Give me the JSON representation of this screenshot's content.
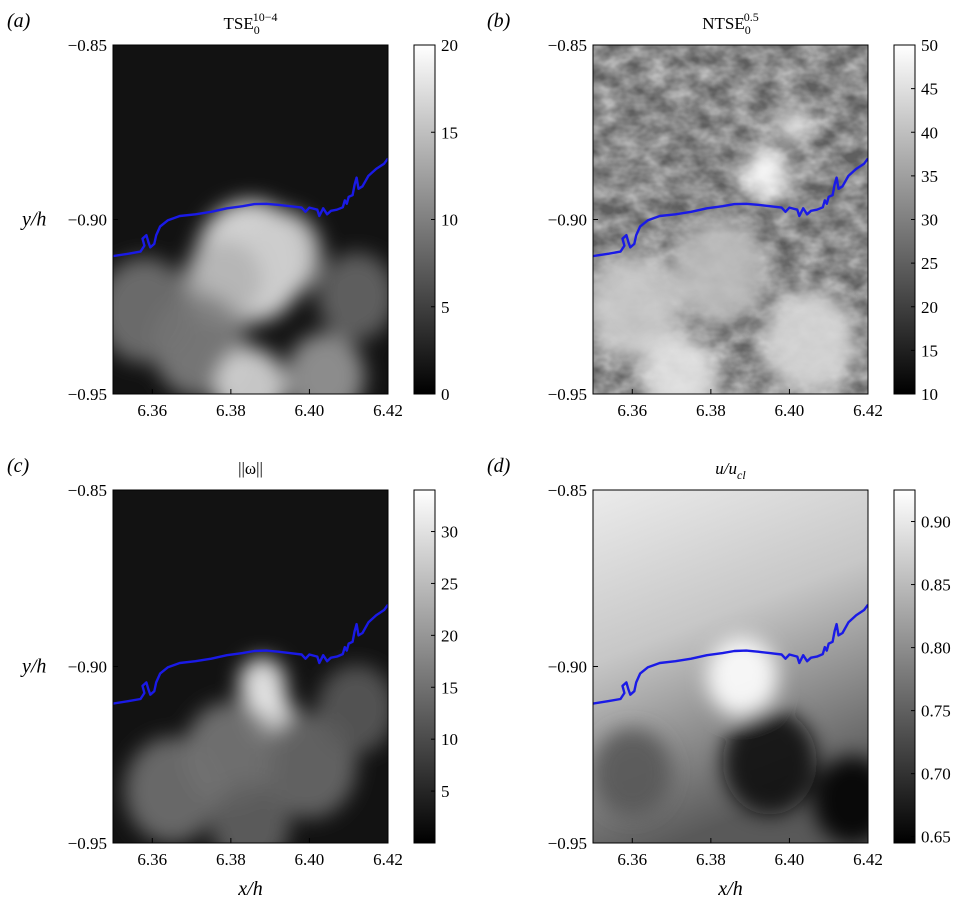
{
  "chart_data": [
    {
      "type": "heatmap",
      "panel_label": "(a)",
      "title": "TSE",
      "title_sub": "0",
      "title_sup": "10−4",
      "colormap": "gray",
      "xlim": [
        6.35,
        6.42
      ],
      "ylim": [
        -0.95,
        -0.85
      ],
      "x_ticks": [
        "6.36",
        "6.38",
        "6.40",
        "6.42"
      ],
      "y_ticks": [
        "−0.85",
        "−0.90",
        "−0.95"
      ],
      "ylabel": "y/h",
      "xlabel": "",
      "colorbar": {
        "min": 0,
        "max": 20,
        "ticks": [
          "0",
          "5",
          "10",
          "15",
          "20"
        ]
      },
      "background": "dark",
      "features": [
        {
          "x": 6.385,
          "y": -0.912,
          "v": 18,
          "r": 0.014
        },
        {
          "x": 6.393,
          "y": -0.91,
          "v": 16,
          "r": 0.01
        },
        {
          "x": 6.378,
          "y": -0.918,
          "v": 14,
          "r": 0.01
        },
        {
          "x": 6.372,
          "y": -0.936,
          "v": 10,
          "r": 0.012
        },
        {
          "x": 6.385,
          "y": -0.948,
          "v": 17,
          "r": 0.009
        },
        {
          "x": 6.404,
          "y": -0.945,
          "v": 12,
          "r": 0.01
        },
        {
          "x": 6.358,
          "y": -0.926,
          "v": 9,
          "r": 0.012
        },
        {
          "x": 6.412,
          "y": -0.922,
          "v": 8,
          "r": 0.01
        }
      ]
    },
    {
      "type": "heatmap",
      "panel_label": "(b)",
      "title": "NTSE",
      "title_sub": "0",
      "title_sup": "0.5",
      "colormap": "gray",
      "xlim": [
        6.35,
        6.42
      ],
      "ylim": [
        -0.95,
        -0.85
      ],
      "x_ticks": [
        "6.36",
        "6.38",
        "6.40",
        "6.42"
      ],
      "y_ticks": [
        "−0.85",
        "−0.90",
        "−0.95"
      ],
      "ylabel": "",
      "xlabel": "",
      "colorbar": {
        "min": 10,
        "max": 50,
        "ticks": [
          "10",
          "15",
          "20",
          "25",
          "30",
          "35",
          "40",
          "45",
          "50"
        ]
      },
      "background": "textured",
      "features": [
        {
          "x": 6.394,
          "y": -0.887,
          "v": 50,
          "r": 0.006
        },
        {
          "x": 6.401,
          "y": -0.873,
          "v": 48,
          "r": 0.004
        },
        {
          "x": 6.36,
          "y": -0.925,
          "v": 42,
          "r": 0.012
        },
        {
          "x": 6.382,
          "y": -0.915,
          "v": 40,
          "r": 0.012
        },
        {
          "x": 6.405,
          "y": -0.935,
          "v": 44,
          "r": 0.012
        },
        {
          "x": 6.372,
          "y": -0.945,
          "v": 46,
          "r": 0.01
        }
      ]
    },
    {
      "type": "heatmap",
      "panel_label": "(c)",
      "title": "||ω||",
      "colormap": "gray",
      "xlim": [
        6.35,
        6.42
      ],
      "ylim": [
        -0.95,
        -0.85
      ],
      "x_ticks": [
        "6.36",
        "6.38",
        "6.40",
        "6.42"
      ],
      "y_ticks": [
        "−0.85",
        "−0.90",
        "−0.95"
      ],
      "ylabel": "y/h",
      "xlabel": "",
      "colorbar": {
        "min": 0,
        "max": 34,
        "ticks": [
          "5",
          "10",
          "15",
          "20",
          "25",
          "30"
        ]
      },
      "background": "dark",
      "features": [
        {
          "x": 6.388,
          "y": -0.905,
          "v": 32,
          "r": 0.006
        },
        {
          "x": 6.39,
          "y": -0.914,
          "v": 31,
          "r": 0.006
        },
        {
          "x": 6.38,
          "y": -0.925,
          "v": 16,
          "r": 0.012
        },
        {
          "x": 6.365,
          "y": -0.935,
          "v": 15,
          "r": 0.012
        },
        {
          "x": 6.4,
          "y": -0.928,
          "v": 14,
          "r": 0.012
        },
        {
          "x": 6.412,
          "y": -0.912,
          "v": 12,
          "r": 0.01
        },
        {
          "x": 6.385,
          "y": -0.945,
          "v": 13,
          "r": 0.01
        }
      ]
    },
    {
      "type": "heatmap",
      "panel_label": "(d)",
      "title": "u/u",
      "title_sub": "cl",
      "colormap": "gray",
      "xlim": [
        6.35,
        6.42
      ],
      "ylim": [
        -0.95,
        -0.85
      ],
      "x_ticks": [
        "6.36",
        "6.38",
        "6.40",
        "6.42"
      ],
      "y_ticks": [
        "−0.85",
        "−0.90",
        "−0.95"
      ],
      "ylabel": "",
      "xlabel": "x/h",
      "colorbar": {
        "min": 0.645,
        "max": 0.925,
        "ticks": [
          "0.65",
          "0.70",
          "0.75",
          "0.80",
          "0.85",
          "0.90"
        ]
      },
      "background": "gradient",
      "features": [
        {
          "x": 6.388,
          "y": -0.903,
          "v": 0.925,
          "r": 0.009
        },
        {
          "x": 6.395,
          "y": -0.927,
          "v": 0.655,
          "r": 0.012
        },
        {
          "x": 6.416,
          "y": -0.938,
          "v": 0.65,
          "r": 0.01
        },
        {
          "x": 6.36,
          "y": -0.93,
          "v": 0.74,
          "r": 0.01
        }
      ]
    }
  ],
  "interface_line": {
    "color": "#1a1ae6",
    "points": [
      [
        6.35,
        -0.9105
      ],
      [
        6.354,
        -0.9098
      ],
      [
        6.357,
        -0.9092
      ],
      [
        6.358,
        -0.9075
      ],
      [
        6.3575,
        -0.9055
      ],
      [
        6.3585,
        -0.9045
      ],
      [
        6.359,
        -0.9065
      ],
      [
        6.3595,
        -0.908
      ],
      [
        6.3605,
        -0.907
      ],
      [
        6.361,
        -0.9045
      ],
      [
        6.362,
        -0.902
      ],
      [
        6.364,
        -0.9002
      ],
      [
        6.367,
        -0.899
      ],
      [
        6.371,
        -0.8985
      ],
      [
        6.375,
        -0.8978
      ],
      [
        6.379,
        -0.8968
      ],
      [
        6.383,
        -0.8962
      ],
      [
        6.386,
        -0.8956
      ],
      [
        6.389,
        -0.8955
      ],
      [
        6.392,
        -0.8958
      ],
      [
        6.395,
        -0.8962
      ],
      [
        6.398,
        -0.8966
      ],
      [
        6.399,
        -0.8978
      ],
      [
        6.4,
        -0.8966
      ],
      [
        6.402,
        -0.8972
      ],
      [
        6.4025,
        -0.899
      ],
      [
        6.4035,
        -0.8968
      ],
      [
        6.4045,
        -0.8985
      ],
      [
        6.4055,
        -0.8975
      ],
      [
        6.407,
        -0.8972
      ],
      [
        6.4085,
        -0.8965
      ],
      [
        6.409,
        -0.8945
      ],
      [
        6.4095,
        -0.8955
      ],
      [
        6.41,
        -0.8935
      ],
      [
        6.411,
        -0.893
      ],
      [
        6.4115,
        -0.89
      ],
      [
        6.412,
        -0.888
      ],
      [
        6.4125,
        -0.8912
      ],
      [
        6.4135,
        -0.8905
      ],
      [
        6.415,
        -0.8875
      ],
      [
        6.417,
        -0.8855
      ],
      [
        6.419,
        -0.884
      ],
      [
        6.42,
        -0.8825
      ]
    ]
  }
}
